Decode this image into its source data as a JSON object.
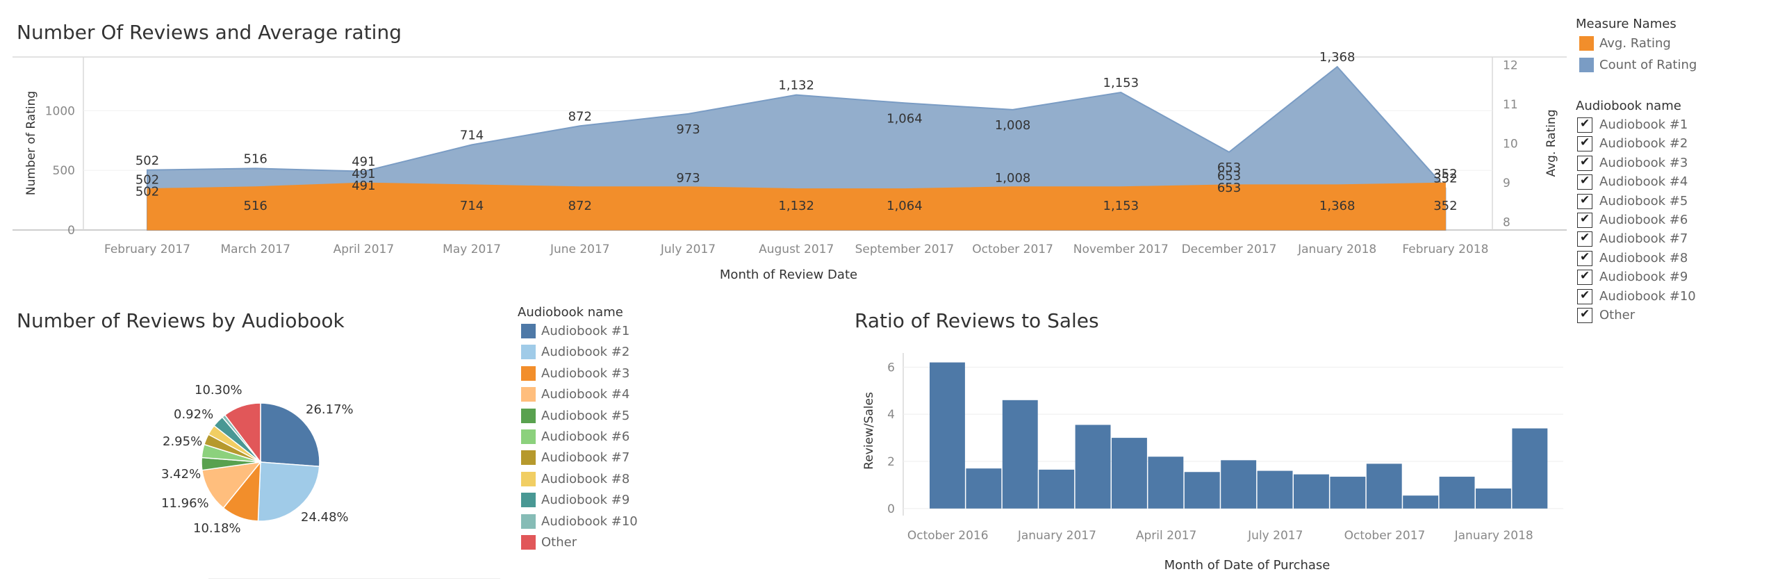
{
  "titles": {
    "top": "Number Of Reviews and Average rating",
    "pie": "Number of Reviews by Audiobook",
    "bar": "Ratio of Reviews to Sales"
  },
  "measure_legend": {
    "title": "Measure Names",
    "items": [
      {
        "label": "Avg. Rating",
        "color": "#f28e2b"
      },
      {
        "label": "Count of Rating",
        "color": "#7a9cc4"
      }
    ]
  },
  "audiobook_filter": {
    "title": "Audiobook name",
    "items": [
      "Audiobook #1",
      "Audiobook #2",
      "Audiobook #3",
      "Audiobook #4",
      "Audiobook #5",
      "Audiobook #6",
      "Audiobook #7",
      "Audiobook #8",
      "Audiobook #9",
      "Audiobook #10",
      "Other"
    ]
  },
  "pie_legend": {
    "title": "Audiobook name",
    "items": [
      {
        "label": "Audiobook #1",
        "color": "#4e79a7"
      },
      {
        "label": "Audiobook #2",
        "color": "#a0cbe8"
      },
      {
        "label": "Audiobook #3",
        "color": "#f28e2b"
      },
      {
        "label": "Audiobook #4",
        "color": "#ffbe7d"
      },
      {
        "label": "Audiobook #5",
        "color": "#59a14f"
      },
      {
        "label": "Audiobook #6",
        "color": "#8cd17d"
      },
      {
        "label": "Audiobook #7",
        "color": "#b6992d"
      },
      {
        "label": "Audiobook #8",
        "color": "#f1ce63"
      },
      {
        "label": "Audiobook #9",
        "color": "#499894"
      },
      {
        "label": "Audiobook #10",
        "color": "#86bcb6"
      },
      {
        "label": "Other",
        "color": "#e15759"
      }
    ]
  },
  "chart_data": [
    {
      "type": "area",
      "title": "Number Of Reviews and Average rating",
      "xlabel": "Month of Review Date",
      "ylabel": "Number of Rating",
      "y2label": "Avg. Rating",
      "categories": [
        "February 2017",
        "March 2017",
        "April 2017",
        "May 2017",
        "June 2017",
        "July 2017",
        "August 2017",
        "September 2017",
        "October 2017",
        "November 2017",
        "December 2017",
        "January 2018",
        "February 2018"
      ],
      "ylim": [
        0,
        1450
      ],
      "yticks": [
        0,
        500,
        1000
      ],
      "y2lim": [
        7.8,
        12.2
      ],
      "y2ticks": [
        8,
        9,
        10,
        11,
        12
      ],
      "grid": true,
      "series": [
        {
          "name": "Count of Rating",
          "color": "#7a9cc4",
          "values": [
            502,
            516,
            491,
            714,
            872,
            973,
            1132,
            1064,
            1008,
            1153,
            653,
            1368,
            352
          ],
          "labels": [
            "502",
            "516",
            "491",
            "714",
            "872",
            "973",
            "1,132",
            "1,064",
            "1,008",
            "1,153",
            "653",
            "1,368",
            "352"
          ]
        },
        {
          "name": "Avg. Rating",
          "color": "#f28e2b",
          "values": [
            8.85,
            8.9,
            9.0,
            8.95,
            8.9,
            8.9,
            8.85,
            8.85,
            8.9,
            8.9,
            8.95,
            8.95,
            9.0
          ],
          "labels": [
            "502",
            "516",
            "491",
            "714",
            "872",
            "973",
            "1,132",
            "1,064",
            "1,008",
            "1,153",
            "653",
            "1,368",
            "352"
          ]
        }
      ]
    },
    {
      "type": "pie",
      "title": "Number of Reviews by Audiobook",
      "slices": [
        {
          "name": "Audiobook #1",
          "value": 26.17,
          "label": "26.17%"
        },
        {
          "name": "Audiobook #2",
          "value": 24.48,
          "label": "24.48%"
        },
        {
          "name": "Audiobook #3",
          "value": 10.18,
          "label": "10.18%"
        },
        {
          "name": "Audiobook #4",
          "value": 11.96,
          "label": "11.96%"
        },
        {
          "name": "Audiobook #5",
          "value": 3.42,
          "label": "3.42%"
        },
        {
          "name": "Audiobook #6",
          "value": 3.6,
          "label": ""
        },
        {
          "name": "Audiobook #7",
          "value": 2.95,
          "label": "2.95%"
        },
        {
          "name": "Audiobook #8",
          "value": 2.8,
          "label": ""
        },
        {
          "name": "Audiobook #9",
          "value": 3.2,
          "label": ""
        },
        {
          "name": "Audiobook #10",
          "value": 0.92,
          "label": "0.92%"
        },
        {
          "name": "Other",
          "value": 10.3,
          "label": "10.30%"
        }
      ]
    },
    {
      "type": "bar",
      "title": "Ratio of Reviews to Sales",
      "xlabel": "Month of Date of Purchase",
      "ylabel": "Review/Sales",
      "categories": [
        "October 2016",
        "November 2016",
        "December 2016",
        "January 2017",
        "February 2017",
        "March 2017",
        "April 2017",
        "May 2017",
        "June 2017",
        "July 2017",
        "August 2017",
        "September 2017",
        "October 2017",
        "November 2017",
        "December 2017",
        "January 2018",
        "February 2018"
      ],
      "xticks": [
        "October 2016",
        "January 2017",
        "April 2017",
        "July 2017",
        "October 2017",
        "January 2018"
      ],
      "values": [
        6.2,
        1.7,
        4.6,
        1.65,
        3.55,
        3.0,
        2.2,
        1.55,
        2.05,
        1.6,
        1.45,
        1.35,
        1.9,
        0.55,
        1.35,
        0.85,
        3.4
      ],
      "ylim": [
        -0.3,
        6.6
      ],
      "yticks": [
        0,
        2,
        4,
        6
      ],
      "color": "#4e79a7",
      "grid": true
    }
  ]
}
